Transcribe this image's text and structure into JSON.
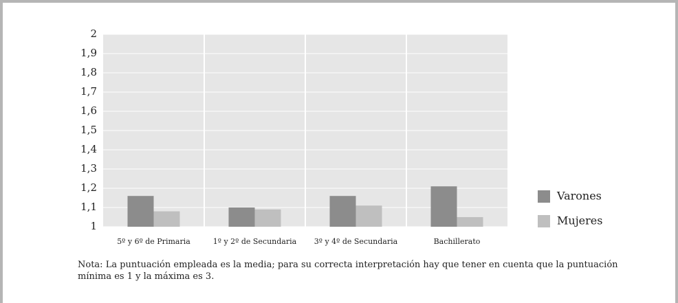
{
  "chart_data": {
    "type": "bar",
    "categories": [
      "5º y 6º de Primaria",
      "1º y 2º de Secundaria",
      "3º y 4º de Secundaria",
      "Bachillerato"
    ],
    "series": [
      {
        "name": "Varones",
        "color": "#8c8c8c",
        "values": [
          1.16,
          1.1,
          1.16,
          1.21
        ]
      },
      {
        "name": "Mujeres",
        "color": "#bfbfbf",
        "values": [
          1.08,
          1.09,
          1.11,
          1.05
        ]
      }
    ],
    "ylim": [
      1,
      2
    ],
    "yticks": [
      1,
      {
        "value": 1.1,
        "label": "1,1"
      },
      {
        "value": 1.2,
        "label": "1,2"
      },
      {
        "value": 1.3,
        "label": "1,3"
      },
      {
        "value": 1.4,
        "label": "1,4"
      },
      {
        "value": 1.5,
        "label": "1,5"
      },
      {
        "value": 1.6,
        "label": "1,6"
      },
      {
        "value": 1.7,
        "label": "1,7"
      },
      {
        "value": 1.8,
        "label": "1,8"
      },
      {
        "value": 1.9,
        "label": "1,9"
      },
      2
    ],
    "grid": true,
    "legend": "right",
    "note": "Nota: La puntuación empleada es la media; para su correcta interpretación hay que tener en cuenta que la puntuación mínima es 1 y la máxima es 3."
  }
}
